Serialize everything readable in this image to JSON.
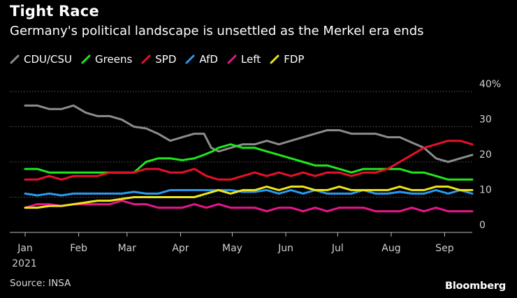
{
  "header": {
    "title": "Tight Race",
    "subtitle": "Germany's political landscape is unsettled as the Merkel era ends"
  },
  "footer": {
    "source": "Source: INSA",
    "brand": "Bloomberg"
  },
  "chart_data": {
    "type": "line",
    "title": "Tight Race",
    "subtitle": "Germany's political landscape is unsettled as the Merkel era ends",
    "xlabel": "",
    "ylabel": "",
    "ylim": [
      0,
      40
    ],
    "y_unit_suffix": "%",
    "yticks": [
      0,
      10,
      20,
      30,
      40
    ],
    "ytick_labels": [
      "0",
      "10",
      "20",
      "30",
      "40%"
    ],
    "xlim": [
      0,
      37
    ],
    "xticks": [
      {
        "pos": 0,
        "label": "Jan"
      },
      {
        "pos": 4.43,
        "label": "Feb"
      },
      {
        "pos": 8.43,
        "label": "Mar"
      },
      {
        "pos": 12.86,
        "label": "Apr"
      },
      {
        "pos": 17.14,
        "label": "May"
      },
      {
        "pos": 21.57,
        "label": "Jun"
      },
      {
        "pos": 25.86,
        "label": "Jul"
      },
      {
        "pos": 30.29,
        "label": "Aug"
      },
      {
        "pos": 34.71,
        "label": "Sep"
      }
    ],
    "year_label": "2021",
    "grid": true,
    "legend_position": "top-left",
    "series": [
      {
        "name": "CDU/CSU",
        "color": "#8c8c8c",
        "values": [
          [
            0,
            36
          ],
          [
            1,
            36
          ],
          [
            2,
            35
          ],
          [
            3,
            35
          ],
          [
            4,
            36
          ],
          [
            5,
            34
          ],
          [
            6,
            33
          ],
          [
            7,
            33
          ],
          [
            8,
            32
          ],
          [
            9,
            30
          ],
          [
            10,
            29.5
          ],
          [
            11,
            28
          ],
          [
            12,
            26
          ],
          [
            13,
            27
          ],
          [
            14,
            28
          ],
          [
            14.8,
            28
          ],
          [
            15.4,
            24
          ],
          [
            16,
            23
          ],
          [
            17,
            24
          ],
          [
            18,
            25
          ],
          [
            19,
            25
          ],
          [
            20,
            26
          ],
          [
            21,
            25
          ],
          [
            22,
            26
          ],
          [
            23,
            27
          ],
          [
            24,
            28
          ],
          [
            25,
            29
          ],
          [
            26,
            29
          ],
          [
            27,
            28
          ],
          [
            28,
            28
          ],
          [
            29,
            28
          ],
          [
            30,
            27
          ],
          [
            31,
            27
          ],
          [
            32,
            25.5
          ],
          [
            33,
            24
          ],
          [
            34,
            21
          ],
          [
            35,
            20
          ],
          [
            36,
            21
          ],
          [
            37,
            22
          ]
        ]
      },
      {
        "name": "Greens",
        "color": "#1ee81e",
        "values": [
          [
            0,
            18
          ],
          [
            1,
            18
          ],
          [
            2,
            17
          ],
          [
            3,
            17
          ],
          [
            4,
            17
          ],
          [
            5,
            17
          ],
          [
            6,
            17
          ],
          [
            7,
            17
          ],
          [
            8,
            17
          ],
          [
            9,
            17
          ],
          [
            10,
            20
          ],
          [
            11,
            21
          ],
          [
            12,
            21
          ],
          [
            13,
            20.5
          ],
          [
            14,
            21
          ],
          [
            14.8,
            22
          ],
          [
            15.5,
            23
          ],
          [
            16,
            24
          ],
          [
            17,
            25
          ],
          [
            18,
            24
          ],
          [
            19,
            24
          ],
          [
            20,
            23
          ],
          [
            21,
            22
          ],
          [
            22,
            21
          ],
          [
            23,
            20
          ],
          [
            24,
            19
          ],
          [
            25,
            19
          ],
          [
            26,
            18
          ],
          [
            27,
            17
          ],
          [
            28,
            18
          ],
          [
            29,
            18
          ],
          [
            30,
            18
          ],
          [
            31,
            18
          ],
          [
            32,
            17
          ],
          [
            33,
            17
          ],
          [
            34,
            16
          ],
          [
            35,
            15
          ],
          [
            36,
            15
          ],
          [
            37,
            15
          ]
        ]
      },
      {
        "name": "SPD",
        "color": "#e8102a",
        "values": [
          [
            0,
            15
          ],
          [
            1,
            15
          ],
          [
            2,
            16
          ],
          [
            3,
            15
          ],
          [
            4,
            16
          ],
          [
            5,
            16
          ],
          [
            6,
            16
          ],
          [
            7,
            17
          ],
          [
            8,
            17
          ],
          [
            9,
            17
          ],
          [
            10,
            18
          ],
          [
            11,
            18
          ],
          [
            12,
            17
          ],
          [
            13,
            17
          ],
          [
            14,
            18
          ],
          [
            15,
            16
          ],
          [
            16,
            15
          ],
          [
            17,
            15
          ],
          [
            18,
            16
          ],
          [
            19,
            17
          ],
          [
            20,
            16
          ],
          [
            21,
            17
          ],
          [
            22,
            16
          ],
          [
            23,
            17
          ],
          [
            24,
            16
          ],
          [
            25,
            17
          ],
          [
            26,
            17
          ],
          [
            27,
            16
          ],
          [
            28,
            17
          ],
          [
            29,
            17
          ],
          [
            30,
            18
          ],
          [
            31,
            20
          ],
          [
            32,
            22
          ],
          [
            33,
            24
          ],
          [
            34,
            25
          ],
          [
            35,
            26
          ],
          [
            36,
            26
          ],
          [
            37,
            25
          ]
        ]
      },
      {
        "name": "AfD",
        "color": "#2a9af0",
        "values": [
          [
            0,
            11
          ],
          [
            1,
            10.5
          ],
          [
            2,
            11
          ],
          [
            3,
            10.5
          ],
          [
            4,
            11
          ],
          [
            5,
            11
          ],
          [
            6,
            11
          ],
          [
            7,
            11
          ],
          [
            8,
            11
          ],
          [
            9,
            11.5
          ],
          [
            10,
            11
          ],
          [
            11,
            11
          ],
          [
            12,
            12
          ],
          [
            13,
            12
          ],
          [
            14,
            12
          ],
          [
            15,
            12
          ],
          [
            16,
            12
          ],
          [
            17,
            12
          ],
          [
            18,
            11.5
          ],
          [
            19,
            11.5
          ],
          [
            20,
            12
          ],
          [
            21,
            11
          ],
          [
            22,
            12
          ],
          [
            23,
            11
          ],
          [
            24,
            12
          ],
          [
            25,
            11
          ],
          [
            26,
            11
          ],
          [
            27,
            11
          ],
          [
            28,
            12
          ],
          [
            29,
            11
          ],
          [
            30,
            11
          ],
          [
            31,
            11.5
          ],
          [
            32,
            11
          ],
          [
            33,
            11
          ],
          [
            34,
            12
          ],
          [
            35,
            11
          ],
          [
            36,
            12
          ],
          [
            37,
            11
          ]
        ]
      },
      {
        "name": "Left",
        "color": "#e8158c",
        "values": [
          [
            0,
            7
          ],
          [
            1,
            8
          ],
          [
            2,
            8
          ],
          [
            3,
            7.5
          ],
          [
            4,
            8
          ],
          [
            5,
            8
          ],
          [
            6,
            8
          ],
          [
            7,
            8
          ],
          [
            8,
            9
          ],
          [
            9,
            8
          ],
          [
            10,
            8
          ],
          [
            11,
            7
          ],
          [
            12,
            7
          ],
          [
            13,
            7
          ],
          [
            14,
            8
          ],
          [
            15,
            7
          ],
          [
            16,
            8
          ],
          [
            17,
            7
          ],
          [
            18,
            7
          ],
          [
            19,
            7
          ],
          [
            20,
            6
          ],
          [
            21,
            7
          ],
          [
            22,
            7
          ],
          [
            23,
            6
          ],
          [
            24,
            7
          ],
          [
            25,
            6
          ],
          [
            26,
            7
          ],
          [
            27,
            7
          ],
          [
            28,
            7
          ],
          [
            29,
            6
          ],
          [
            30,
            6
          ],
          [
            31,
            6
          ],
          [
            32,
            7
          ],
          [
            33,
            6
          ],
          [
            34,
            7
          ],
          [
            35,
            6
          ],
          [
            36,
            6
          ],
          [
            37,
            6
          ]
        ]
      },
      {
        "name": "FDP",
        "color": "#f0e51a",
        "values": [
          [
            0,
            7
          ],
          [
            1,
            7
          ],
          [
            2,
            7.5
          ],
          [
            3,
            7.5
          ],
          [
            4,
            8
          ],
          [
            5,
            8.5
          ],
          [
            6,
            9
          ],
          [
            7,
            9
          ],
          [
            8,
            9.5
          ],
          [
            9,
            10
          ],
          [
            10,
            10
          ],
          [
            11,
            10
          ],
          [
            12,
            10
          ],
          [
            13,
            10
          ],
          [
            14,
            10
          ],
          [
            15,
            11
          ],
          [
            16,
            12
          ],
          [
            17,
            11
          ],
          [
            18,
            12
          ],
          [
            19,
            12
          ],
          [
            20,
            13
          ],
          [
            21,
            12
          ],
          [
            22,
            13
          ],
          [
            23,
            13
          ],
          [
            24,
            12
          ],
          [
            25,
            12
          ],
          [
            26,
            13
          ],
          [
            27,
            12
          ],
          [
            28,
            12
          ],
          [
            29,
            12
          ],
          [
            30,
            12
          ],
          [
            31,
            13
          ],
          [
            32,
            12
          ],
          [
            33,
            12
          ],
          [
            34,
            13
          ],
          [
            35,
            13
          ],
          [
            36,
            12
          ],
          [
            37,
            12
          ]
        ]
      }
    ]
  }
}
